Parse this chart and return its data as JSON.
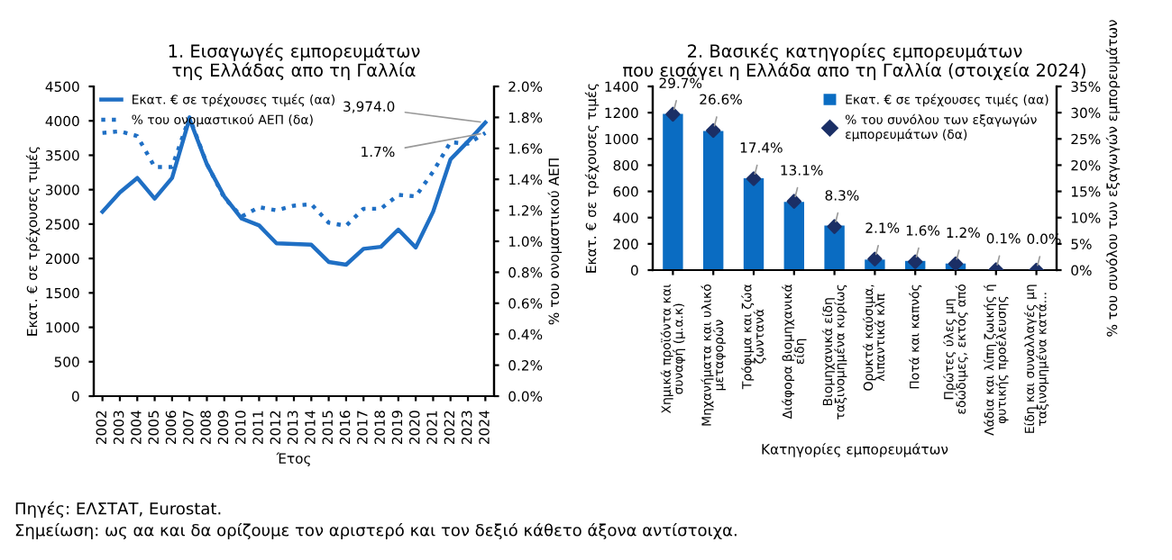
{
  "chart_data": [
    {
      "type": "line",
      "title": "1. Εισαγωγές εμπορευμάτων\nτης Ελλάδας απο τη Γαλλία",
      "xlabel": "Έτος",
      "ylabel": "Εκατ. € σε τρέχουσες τιμές",
      "y2label": "% του ονομαστικού ΑΕΠ",
      "categories": [
        "2002",
        "2003",
        "2004",
        "2005",
        "2006",
        "2007",
        "2008",
        "2009",
        "2010",
        "2011",
        "2012",
        "2013",
        "2014",
        "2015",
        "2016",
        "2017",
        "2018",
        "2019",
        "2020",
        "2021",
        "2022",
        "2023",
        "2024"
      ],
      "series": [
        {
          "name": "Εκατ. € σε τρέχουσες τιμές (αα)",
          "color": "#1f6fc4",
          "line_style": "solid",
          "values": [
            2680,
            2960,
            3170,
            2870,
            3170,
            4030,
            3370,
            2900,
            2580,
            2480,
            2220,
            2210,
            2200,
            1950,
            1910,
            2140,
            2170,
            2420,
            2160,
            2680,
            3440,
            3700,
            3974.0
          ],
          "value_labels": [
            null,
            null,
            null,
            null,
            null,
            null,
            null,
            null,
            null,
            null,
            null,
            null,
            null,
            null,
            null,
            null,
            null,
            null,
            null,
            null,
            null,
            null,
            "3,974.0"
          ]
        },
        {
          "name": "% του ονομαστικού ΑΕΠ (δα)",
          "color": "#1f6fc4",
          "line_style": "dotted",
          "axis": "y2",
          "values": [
            1.7,
            1.71,
            1.68,
            1.48,
            1.48,
            1.8,
            1.5,
            1.28,
            1.16,
            1.22,
            1.2,
            1.23,
            1.24,
            1.12,
            1.1,
            1.21,
            1.21,
            1.3,
            1.29,
            1.45,
            1.64,
            1.63,
            1.7
          ],
          "value_labels": [
            null,
            null,
            null,
            null,
            null,
            null,
            null,
            null,
            null,
            null,
            null,
            null,
            null,
            null,
            null,
            null,
            null,
            null,
            null,
            null,
            null,
            null,
            "1.7%"
          ]
        }
      ],
      "ylim": [
        0,
        4500
      ],
      "yticks": [
        0,
        500,
        1000,
        1500,
        2000,
        2500,
        3000,
        3500,
        4000,
        4500
      ],
      "y2lim": [
        0,
        2.0
      ],
      "y2ticks": [
        {
          "value": 0,
          "label": "0.0%"
        },
        {
          "value": 0.2,
          "label": "0.2%"
        },
        {
          "value": 0.4,
          "label": "0.4%"
        },
        {
          "value": 0.6,
          "label": "0.6%"
        },
        {
          "value": 0.8,
          "label": "0.8%"
        },
        {
          "value": 1.0,
          "label": "1.0%"
        },
        {
          "value": 1.2,
          "label": "1.2%"
        },
        {
          "value": 1.4,
          "label": "1.4%"
        },
        {
          "value": 1.6,
          "label": "1.6%"
        },
        {
          "value": 1.8,
          "label": "1.8%"
        },
        {
          "value": 2.0,
          "label": "2.0%"
        }
      ],
      "legend": "top left",
      "annotations": [
        "Πηγές: ΕΛΣΤΑΤ, Eurostat.",
        "Σημείωση: ως αα και δα ορίζουμε τον αριστερό και τον δεξιό κάθετο άξονα αντίστοιχα."
      ]
    },
    {
      "type": "bar",
      "title": "2. Βασικές κατηγορίες εμπορευμάτων\nπου εισάγει η Ελλάδα απο τη Γαλλία (στοιχεία 2024)",
      "xlabel": "Κατηγορίες εμπορευμάτων",
      "ylabel": "Εκατ. € σε τρέχουσες τιμές",
      "y2label": "% του συνόλου των εξαγωγών εμπορευμάτων",
      "categories": [
        "Χημικά προϊόντα και\nσυναφή (μ.α.κ)",
        "Μηχανήματα και υλικό\nμεταφορών",
        "Τρόφιμα και ζώα\nζωντανά",
        "Διάφορα βιομηχανικά\nείδη",
        "Βιομηχανικά είδη\nταξινομημένα κυρίως",
        "Ορυκτά καύσιμα,\nλιπαντικά κλπ",
        "Ποτά και καπνός",
        "Πρώτες ύλες μη\nεδώδιμες, εκτός από",
        "Λάδια και λίπη ζωικής ή\nφυτικής προέλευσης",
        "Είδη και συναλλαγές μη\nταξινομημένα κατά..."
      ],
      "series": [
        {
          "name": "Εκατ. € σε τρέχουσες τιμές (αα)",
          "color": "#0a6cc2",
          "values": [
            1190,
            1060,
            700,
            520,
            340,
            80,
            70,
            50,
            null,
            0
          ]
        },
        {
          "name": "% του συνόλου των εξαγωγών\nεμπορευμάτων (δα)",
          "type": "scatter",
          "marker": "diamond",
          "color": "#1b2f66",
          "axis": "y2",
          "values": [
            29.7,
            26.6,
            17.4,
            13.1,
            8.3,
            2.1,
            1.6,
            1.2,
            0.1,
            0.0
          ],
          "value_labels": [
            "29.7%",
            "26.6%",
            "17.4%",
            "13.1%",
            "8.3%",
            "2.1%",
            "1.6%",
            "1.2%",
            "0.1%",
            "0.0%"
          ]
        }
      ],
      "ylim": [
        0,
        1400
      ],
      "yticks": [
        0,
        200,
        400,
        600,
        800,
        1000,
        1200,
        1400
      ],
      "y2lim": [
        0,
        35
      ],
      "y2ticks": [
        {
          "value": 0,
          "label": "0%"
        },
        {
          "value": 5,
          "label": "5%"
        },
        {
          "value": 10,
          "label": "10%"
        },
        {
          "value": 15,
          "label": "15%"
        },
        {
          "value": 20,
          "label": "20%"
        },
        {
          "value": 25,
          "label": "25%"
        },
        {
          "value": 30,
          "label": "30%"
        },
        {
          "value": 35,
          "label": "35%"
        }
      ],
      "legend": "top right"
    }
  ]
}
